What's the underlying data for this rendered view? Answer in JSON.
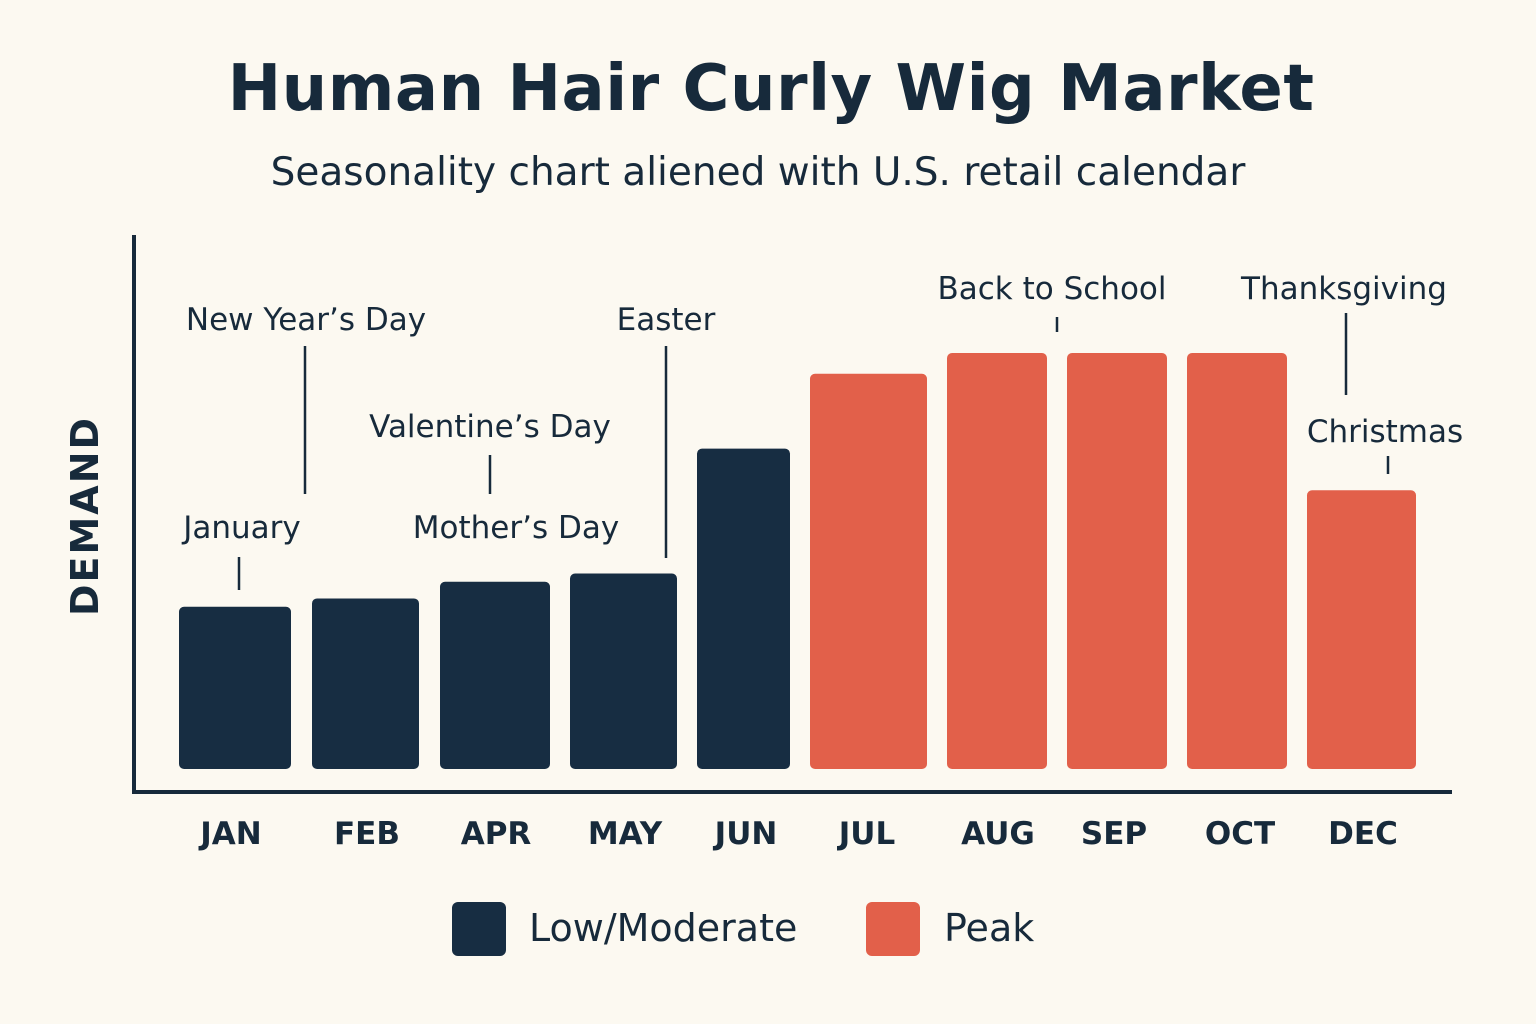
{
  "title": "Human Hair Curly Wig Market",
  "subtitle": "Seasonality chart aliened with U.S. retail calendar",
  "colors": {
    "low_moderate": "#172d42",
    "peak": "#e2604a",
    "axis": "#172a3b",
    "text": "#172a3b",
    "background": "#fcf9f1"
  },
  "legend": [
    {
      "label": "Low/Moderate",
      "color": "#172d42"
    },
    {
      "label": "Peak",
      "color": "#e2604a"
    }
  ],
  "chart_data": {
    "type": "bar",
    "ylabel": "DEMAND",
    "xlabel": "",
    "ylim": [
      0,
      100
    ],
    "grid": false,
    "y_ticks_shown": false,
    "legend_position": "bottom",
    "categories": [
      "JAN",
      "FEB",
      "APR",
      "MAY",
      "JUN",
      "JUL",
      "AUG",
      "SEP",
      "OCT",
      "DEC"
    ],
    "series": [
      {
        "name": "Low/Moderate",
        "values": [
          39,
          41,
          45,
          47,
          77,
          null,
          null,
          null,
          null,
          null
        ]
      },
      {
        "name": "Peak",
        "values": [
          null,
          null,
          null,
          null,
          null,
          95,
          100,
          100,
          100,
          67
        ]
      }
    ],
    "annotations": [
      {
        "text": "January"
      },
      {
        "text": "New Year’s Day"
      },
      {
        "text": "Valentine’s Day"
      },
      {
        "text": "Mother’s Day"
      },
      {
        "text": "Easter"
      },
      {
        "text": "Back to School"
      },
      {
        "text": "Thanksgiving"
      },
      {
        "text": "Christmas"
      }
    ]
  }
}
